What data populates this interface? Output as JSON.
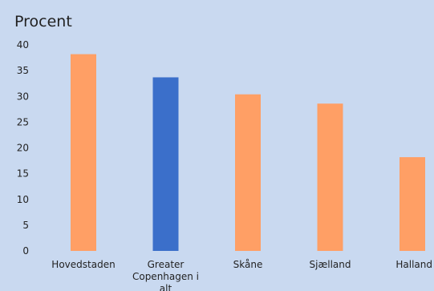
{
  "chart_data": {
    "type": "bar",
    "title": "",
    "xlabel": "",
    "ylabel": "Procent",
    "ylim": [
      0,
      40
    ],
    "yticks": [
      0,
      5,
      10,
      15,
      20,
      25,
      30,
      35,
      40
    ],
    "grid": false,
    "legend": "none",
    "categories": [
      "Hovedstaden",
      "Greater Copenhagen i alt",
      "Skåne",
      "Sjælland",
      "Halland"
    ],
    "category_lines": [
      [
        "Hovedstaden"
      ],
      [
        "Greater",
        "Copenhagen i",
        "alt"
      ],
      [
        "Skåne"
      ],
      [
        "Sjælland"
      ],
      [
        "Halland"
      ]
    ],
    "values": [
      38.2,
      33.7,
      30.4,
      28.6,
      18.2
    ],
    "bar_colors": [
      "#ff9f65",
      "#3b6fca",
      "#ff9f65",
      "#ff9f65",
      "#ff9f65"
    ]
  },
  "colors": {
    "background": "#c9d9f0",
    "highlight": "#3b6fca",
    "default": "#ff9f65"
  }
}
